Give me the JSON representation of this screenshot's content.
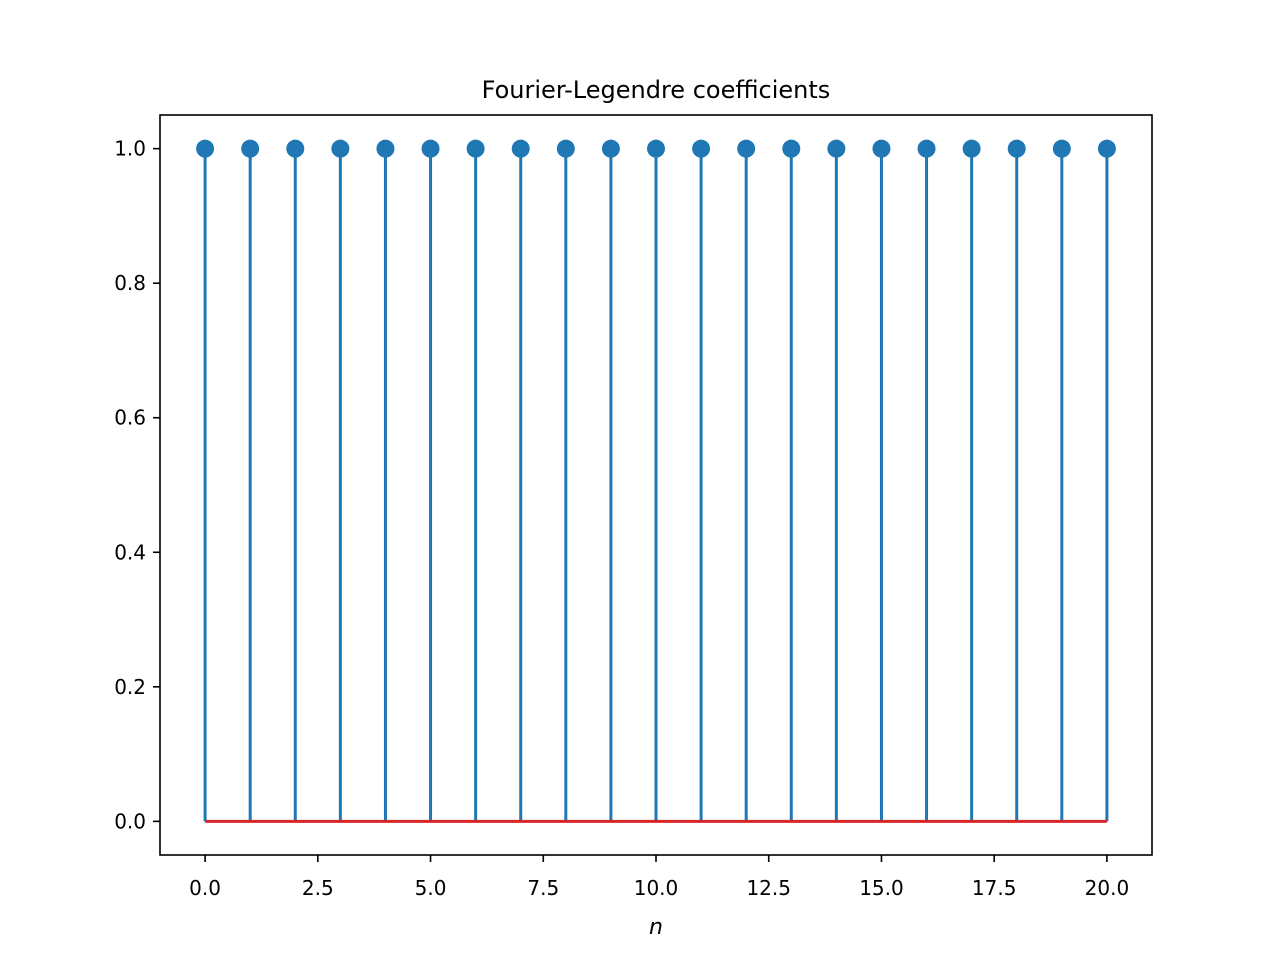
{
  "chart_data": {
    "type": "stem",
    "title": "Fourier-Legendre coefficients",
    "xlabel": "n",
    "ylabel": "",
    "xlim": [
      -1,
      21
    ],
    "ylim": [
      -0.05,
      1.05
    ],
    "x": [
      0,
      1,
      2,
      3,
      4,
      5,
      6,
      7,
      8,
      9,
      10,
      11,
      12,
      13,
      14,
      15,
      16,
      17,
      18,
      19,
      20
    ],
    "values": [
      1.0,
      1.0,
      1.0,
      1.0,
      1.0,
      1.0,
      1.0,
      1.0,
      1.0,
      1.0,
      1.0,
      1.0,
      1.0,
      1.0,
      1.0,
      1.0,
      1.0,
      1.0,
      1.0,
      1.0,
      1.0
    ],
    "baseline": 0.0,
    "xticks": [
      0.0,
      2.5,
      5.0,
      7.5,
      10.0,
      12.5,
      15.0,
      17.5,
      20.0
    ],
    "xtick_labels": [
      "0.0",
      "2.5",
      "5.0",
      "7.5",
      "10.0",
      "12.5",
      "15.0",
      "17.5",
      "20.0"
    ],
    "yticks": [
      0.0,
      0.2,
      0.4,
      0.6,
      0.8,
      1.0
    ],
    "ytick_labels": [
      "0.0",
      "0.2",
      "0.4",
      "0.6",
      "0.8",
      "1.0"
    ],
    "grid": false,
    "colors": {
      "stem": "#1f77b4",
      "baseline": "#d62728",
      "axes": "#000000"
    }
  }
}
